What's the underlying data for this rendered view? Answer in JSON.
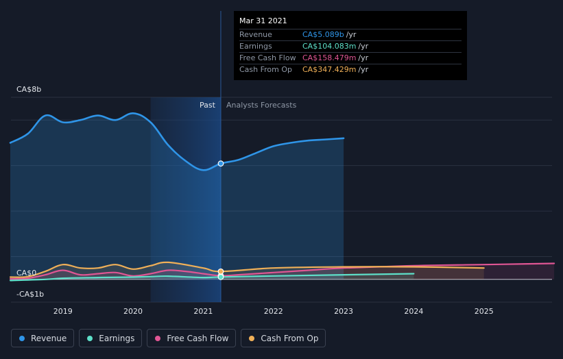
{
  "tooltip": {
    "date": "Mar 31 2021",
    "rows": [
      {
        "label": "Revenue",
        "value": "CA$5.089b",
        "unit": "/yr",
        "color": "#2f95e8"
      },
      {
        "label": "Earnings",
        "value": "CA$104.083m",
        "unit": "/yr",
        "color": "#5ee0c9"
      },
      {
        "label": "Free Cash Flow",
        "value": "CA$158.479m",
        "unit": "/yr",
        "color": "#e05694"
      },
      {
        "label": "Cash From Op",
        "value": "CA$347.429m",
        "unit": "/yr",
        "color": "#f0b058"
      }
    ]
  },
  "legend": [
    {
      "label": "Revenue",
      "color": "#2f95e8"
    },
    {
      "label": "Earnings",
      "color": "#5ee0c9"
    },
    {
      "label": "Free Cash Flow",
      "color": "#e05694"
    },
    {
      "label": "Cash From Op",
      "color": "#f0b058"
    }
  ],
  "chart_data": {
    "type": "line",
    "y_unit": "CA$ billions",
    "ylim": [
      -1,
      8
    ],
    "ytick_labels": [
      {
        "value": 8,
        "label": "CA$8b"
      },
      {
        "value": 0,
        "label": "CA$0"
      },
      {
        "value": -1,
        "label": "-CA$1b"
      }
    ],
    "xlim": [
      2018.26,
      2025.97
    ],
    "xticks": [
      2019,
      2020,
      2021,
      2022,
      2023,
      2024,
      2025
    ],
    "xtick_labels": [
      "2019",
      "2020",
      "2021",
      "2022",
      "2023",
      "2024",
      "2025"
    ],
    "past_label": "Past",
    "forecast_label": "Analysts Forecasts",
    "split_x": 2021.25,
    "highlight_start_x": 2020.25,
    "colors": {
      "revenue": "#2f95e8",
      "earnings": "#5ee0c9",
      "fcf": "#e05694",
      "cfo": "#f0b058",
      "grid": "#2a3140",
      "zero": "#c9ced6"
    },
    "series": [
      {
        "name": "Revenue",
        "key": "revenue",
        "x": [
          2018.25,
          2018.5,
          2018.75,
          2019.0,
          2019.25,
          2019.5,
          2019.75,
          2020.0,
          2020.25,
          2020.5,
          2020.75,
          2021.0,
          2021.25,
          2021.5,
          2021.75,
          2022.0,
          2022.25,
          2022.5,
          2022.75,
          2023.0
        ],
        "values": [
          6.0,
          6.4,
          7.2,
          6.9,
          7.0,
          7.2,
          7.0,
          7.3,
          6.9,
          5.9,
          5.2,
          4.8,
          5.09,
          5.25,
          5.55,
          5.85,
          6.0,
          6.1,
          6.15,
          6.2
        ]
      },
      {
        "name": "Earnings",
        "key": "earnings",
        "x": [
          2018.25,
          2018.75,
          2019.0,
          2019.5,
          2020.0,
          2020.25,
          2020.5,
          2021.0,
          2021.25,
          2022.0,
          2023.0,
          2024.0
        ],
        "values": [
          -0.05,
          0.0,
          0.05,
          0.08,
          0.1,
          0.12,
          0.14,
          0.08,
          0.104,
          0.15,
          0.2,
          0.25
        ]
      },
      {
        "name": "Free Cash Flow",
        "key": "fcf",
        "x": [
          2018.25,
          2018.5,
          2018.75,
          2019.0,
          2019.25,
          2019.5,
          2019.75,
          2020.0,
          2020.25,
          2020.5,
          2020.75,
          2021.0,
          2021.25,
          2021.5,
          2022.0,
          2022.5,
          2023.0,
          2024.0,
          2025.0,
          2026.0
        ],
        "values": [
          0.02,
          0.05,
          0.2,
          0.4,
          0.2,
          0.25,
          0.3,
          0.15,
          0.25,
          0.4,
          0.35,
          0.25,
          0.158,
          0.2,
          0.3,
          0.4,
          0.5,
          0.6,
          0.65,
          0.7
        ]
      },
      {
        "name": "Cash From Op",
        "key": "cfo",
        "x": [
          2018.25,
          2018.5,
          2018.75,
          2019.0,
          2019.25,
          2019.5,
          2019.75,
          2020.0,
          2020.25,
          2020.5,
          2021.0,
          2021.25,
          2022.0,
          2023.0,
          2024.0,
          2025.0
        ],
        "values": [
          0.1,
          0.12,
          0.35,
          0.65,
          0.5,
          0.5,
          0.65,
          0.45,
          0.6,
          0.75,
          0.5,
          0.347,
          0.5,
          0.55,
          0.55,
          0.5
        ]
      }
    ],
    "tooltip_x": 2021.25
  }
}
